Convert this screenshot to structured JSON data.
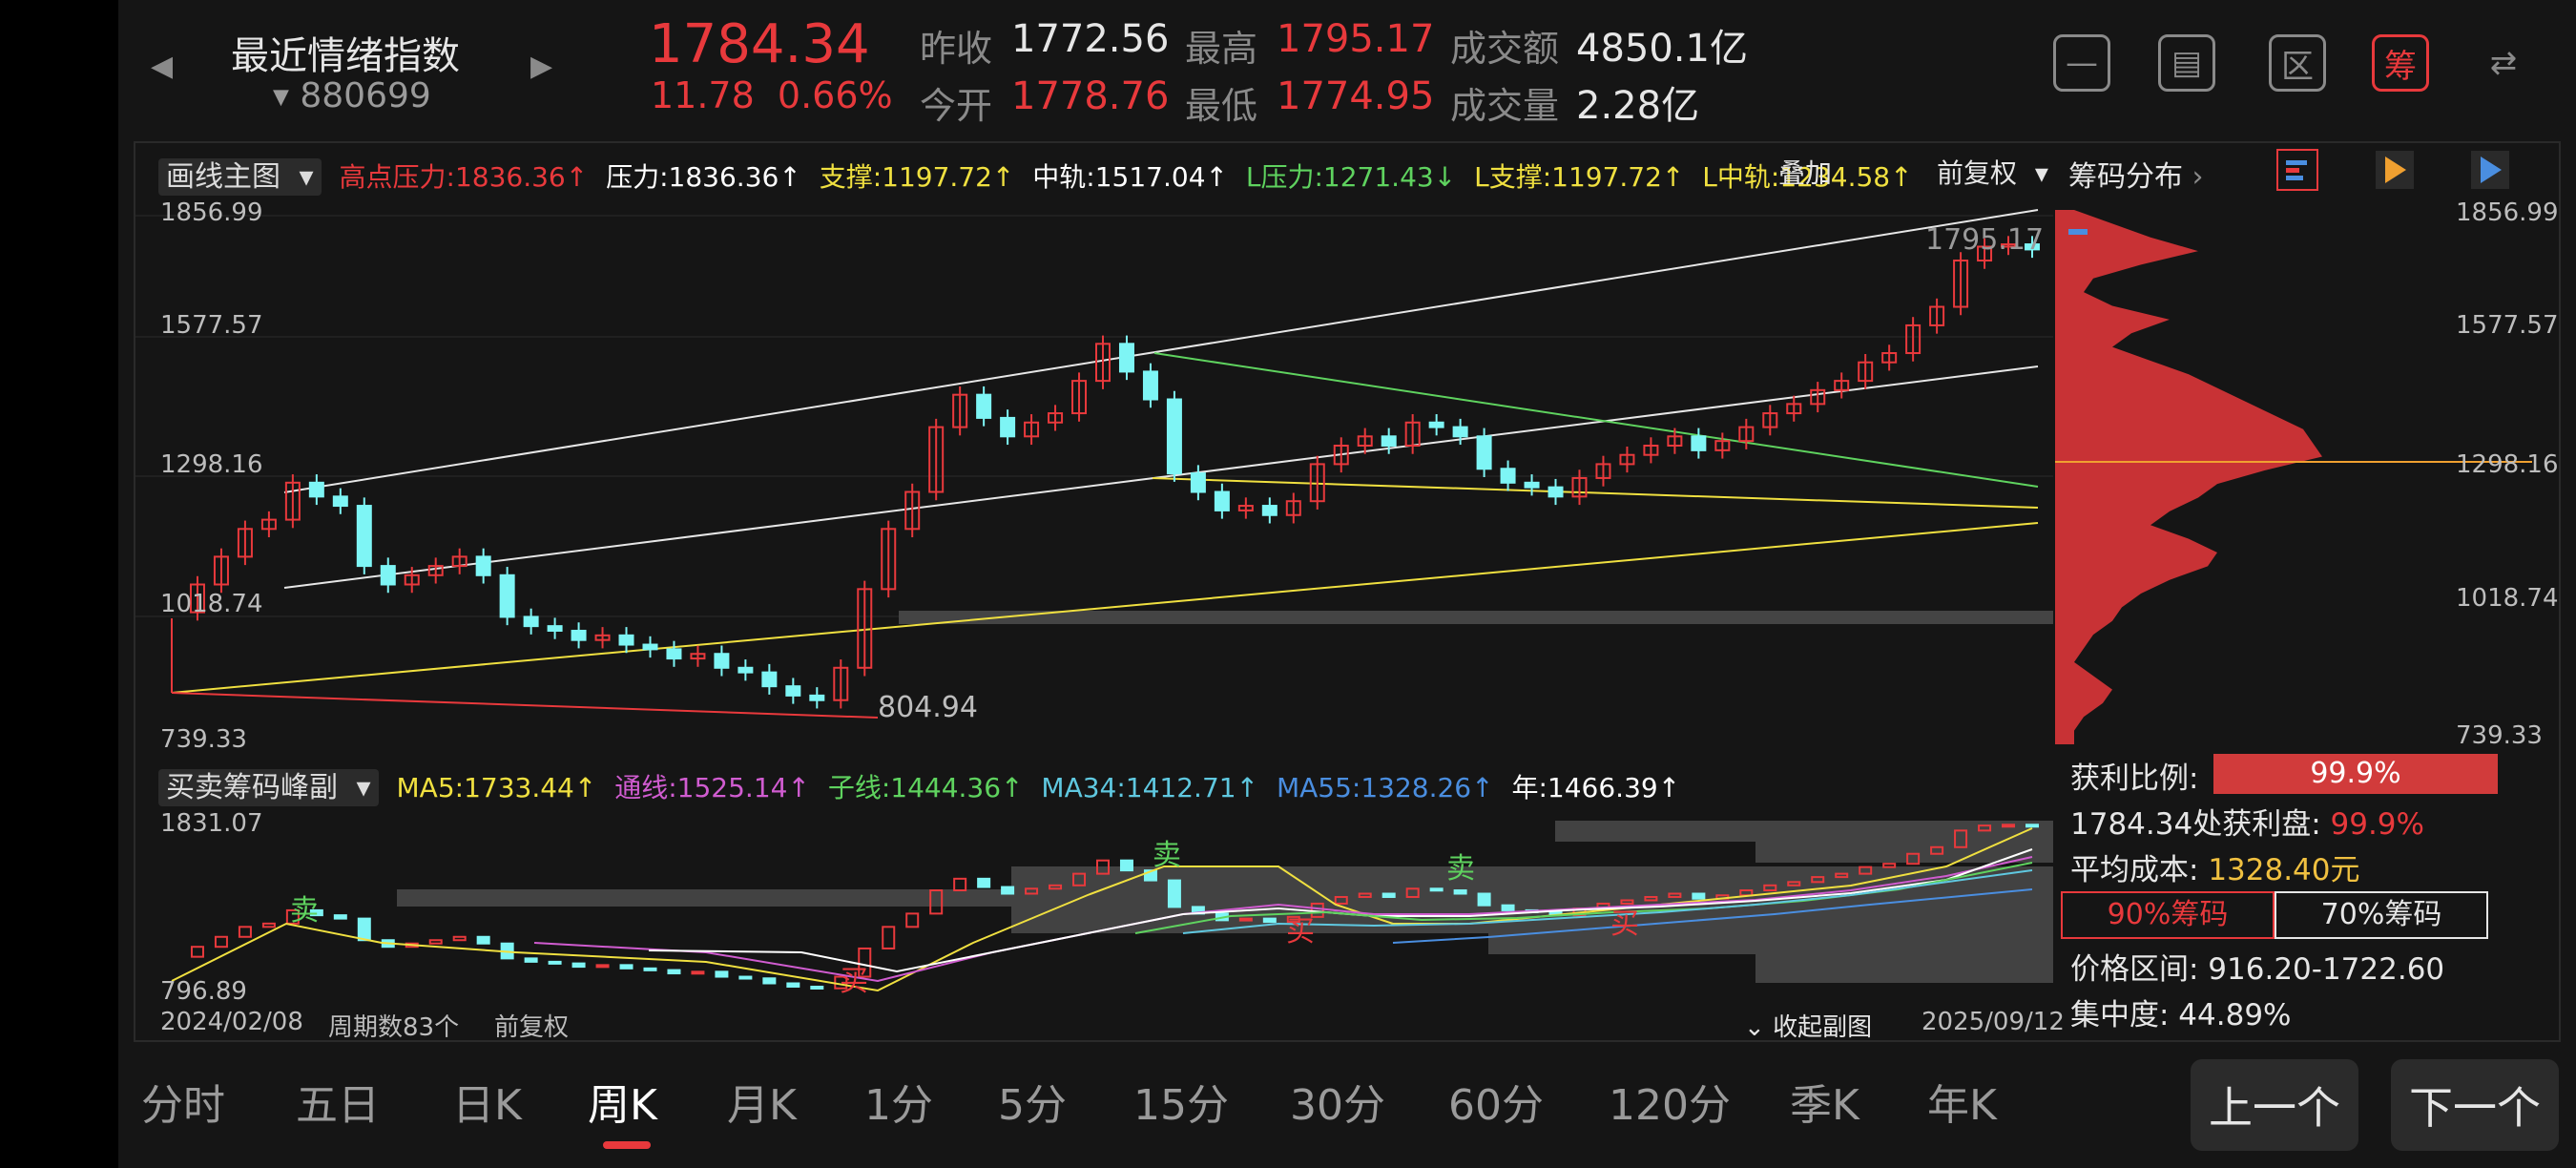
{
  "header": {
    "name": "最近情绪指数",
    "code": "880699",
    "price": "1784.34",
    "change": "11.78",
    "change_pct": "0.66%",
    "stats": {
      "prev_close_label": "昨收",
      "prev_close": "1772.56",
      "open_label": "今开",
      "open": "1778.76",
      "high_label": "最高",
      "high": "1795.17",
      "low_label": "最低",
      "low": "1774.95",
      "amount_label": "成交额",
      "amount": "4850.1亿",
      "volume_label": "成交量",
      "volume": "2.28亿"
    },
    "tools": {
      "t1": "—",
      "t2": "▤",
      "t3": "区",
      "t4": "筹",
      "t5": "⇄"
    }
  },
  "main_indicators": {
    "selector": "画线主图",
    "items": [
      {
        "label": "高点压力:1836.36↑",
        "color": "#e8393c"
      },
      {
        "label": "压力:1836.36↑",
        "color": "#ffffff"
      },
      {
        "label": "支撑:1197.72↑",
        "color": "#f0e040"
      },
      {
        "label": "中轨:1517.04↑",
        "color": "#ffffff"
      },
      {
        "label": "L压力:1271.43↓",
        "color": "#5fd35f"
      },
      {
        "label": "L支撑:1197.72↑",
        "color": "#f0e040"
      },
      {
        "label": "L中轨:1234.58↑",
        "color": "#f0e040"
      }
    ],
    "extra_overlap": "叠加",
    "fq": "前复权"
  },
  "main_axis": {
    "y_ticks": [
      "1856.99",
      "1577.57",
      "1298.16",
      "1018.74",
      "739.33"
    ]
  },
  "annotations": {
    "high": "1795.17",
    "low": "804.94"
  },
  "chips": {
    "title": "筹码分布",
    "y_ticks": [
      "1856.99",
      "1577.57",
      "1298.16",
      "1018.74",
      "739.33"
    ],
    "profit_ratio_label": "获利比例:",
    "profit_ratio": "99.9%",
    "profit_at_label": "1784.34处获利盘:",
    "profit_at": "99.9%",
    "avg_cost_label": "平均成本:",
    "avg_cost": "1328.40元",
    "tab90": "90%筹码",
    "tab70": "70%筹码",
    "price_range": "价格区间: 916.20-1722.60",
    "concentration": "集中度: 44.89%"
  },
  "sub_indicators": {
    "selector": "买卖筹码峰副",
    "items": [
      {
        "label": "MA5:1733.44↑",
        "color": "#f0e040"
      },
      {
        "label": "通线:1525.14↑",
        "color": "#d05cd0"
      },
      {
        "label": "子线:1444.36↑",
        "color": "#5fd35f"
      },
      {
        "label": "MA34:1412.71↑",
        "color": "#5fc8e0"
      },
      {
        "label": "MA55:1328.26↑",
        "color": "#4a8ee0"
      },
      {
        "label": "年:1466.39↑",
        "color": "#ffffff"
      }
    ],
    "y_ticks": [
      "1831.07",
      "796.89"
    ],
    "sell_mark": "卖",
    "buy_mark": "买"
  },
  "footer": {
    "start_date": "2024/02/08",
    "period_count": "周期数83个",
    "fq": "前复权",
    "collapse": "收起副图",
    "end_date": "2025/09/12"
  },
  "periods": [
    "分时",
    "五日",
    "日K",
    "周K",
    "月K",
    "1分",
    "5分",
    "15分",
    "30分",
    "60分",
    "120分",
    "季K",
    "年K"
  ],
  "active_period": "周K",
  "nav": {
    "prev": "上一个",
    "next": "下一个"
  },
  "colors": {
    "up": "#e8393c",
    "down": "#7ef5f5",
    "bg": "#151515"
  }
}
